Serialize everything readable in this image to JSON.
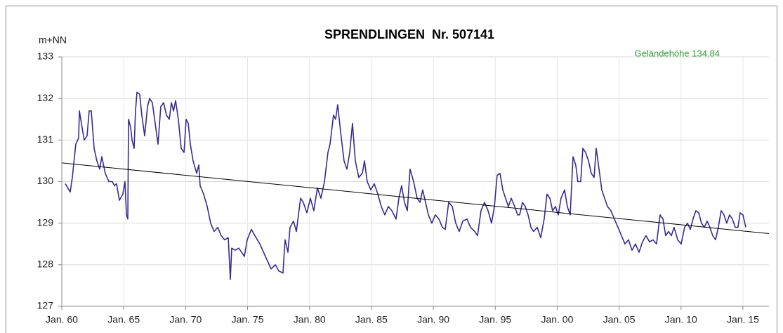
{
  "chart_data": {
    "type": "line",
    "title": "SPRENDLINGEN  Nr. 507141",
    "y_label": "m+NN",
    "annotation": "Geländehöhe 134,84",
    "annotation_color": "#339933",
    "x": [
      1960.28,
      1960.68,
      1960.85,
      1961.13,
      1961.36,
      1961.42,
      1961.64,
      1961.81,
      1962.04,
      1962.21,
      1962.38,
      1962.61,
      1962.83,
      1963.06,
      1963.23,
      1963.51,
      1963.8,
      1964.08,
      1964.25,
      1964.42,
      1964.65,
      1964.93,
      1965.1,
      1965.22,
      1965.33,
      1965.39,
      1965.56,
      1965.67,
      1965.84,
      1965.95,
      1966.07,
      1966.29,
      1966.46,
      1966.69,
      1966.92,
      1967.09,
      1967.31,
      1967.54,
      1967.77,
      1967.99,
      1968.22,
      1968.45,
      1968.68,
      1968.85,
      1969.02,
      1969.19,
      1969.41,
      1969.64,
      1969.87,
      1970.04,
      1970.21,
      1970.38,
      1970.6,
      1970.89,
      1971.06,
      1971.17,
      1971.45,
      1971.74,
      1972.02,
      1972.3,
      1972.59,
      1972.87,
      1973.15,
      1973.44,
      1973.61,
      1973.72,
      1974.0,
      1974.29,
      1974.52,
      1974.74,
      1974.97,
      1975.31,
      1975.59,
      1975.99,
      1976.44,
      1976.9,
      1977.24,
      1977.52,
      1977.86,
      1978.03,
      1978.26,
      1978.43,
      1978.71,
      1978.94,
      1979.28,
      1979.5,
      1979.79,
      1980.07,
      1980.35,
      1980.64,
      1980.92,
      1981.21,
      1981.49,
      1981.66,
      1981.94,
      1982.11,
      1982.28,
      1982.51,
      1982.79,
      1983.02,
      1983.25,
      1983.47,
      1983.7,
      1983.98,
      1984.27,
      1984.44,
      1984.66,
      1984.95,
      1985.23,
      1985.52,
      1985.8,
      1986.08,
      1986.37,
      1986.65,
      1986.99,
      1987.22,
      1987.44,
      1987.67,
      1987.9,
      1988.12,
      1988.41,
      1988.69,
      1988.92,
      1989.14,
      1989.37,
      1989.6,
      1989.88,
      1990.16,
      1990.45,
      1990.73,
      1990.96,
      1991.24,
      1991.53,
      1991.81,
      1992.09,
      1992.38,
      1992.72,
      1993.0,
      1993.34,
      1993.57,
      1993.85,
      1994.13,
      1994.42,
      1994.7,
      1994.93,
      1995.15,
      1995.38,
      1995.61,
      1995.83,
      1996.06,
      1996.29,
      1996.57,
      1996.8,
      1996.97,
      1997.2,
      1997.42,
      1997.65,
      1997.88,
      1998.1,
      1998.39,
      1998.67,
      1998.95,
      1999.18,
      1999.41,
      1999.63,
      1999.86,
      2000.09,
      2000.31,
      2000.6,
      2000.82,
      2001.05,
      2001.28,
      2001.5,
      2001.67,
      2001.9,
      2002.07,
      2002.3,
      2002.53,
      2002.75,
      2002.98,
      2003.15,
      2003.38,
      2003.6,
      2003.83,
      2004.06,
      2004.34,
      2004.62,
      2004.91,
      2005.19,
      2005.47,
      2005.76,
      2006.04,
      2006.32,
      2006.61,
      2006.89,
      2007.17,
      2007.46,
      2007.74,
      2008.02,
      2008.31,
      2008.54,
      2008.76,
      2008.99,
      2009.22,
      2009.44,
      2009.73,
      2010.01,
      2010.29,
      2010.52,
      2010.75,
      2010.97,
      2011.2,
      2011.43,
      2011.65,
      2011.88,
      2012.11,
      2012.33,
      2012.56,
      2012.79,
      2013.01,
      2013.24,
      2013.47,
      2013.69,
      2013.92,
      2014.15,
      2014.38,
      2014.6,
      2014.77,
      2015.0,
      2015.23
    ],
    "series": [
      {
        "color": "#3b2a8f",
        "values": [
          129.95,
          129.75,
          130.1,
          130.9,
          131.05,
          131.7,
          131.3,
          131.0,
          131.1,
          131.7,
          131.7,
          130.8,
          130.5,
          130.3,
          130.6,
          130.2,
          130.0,
          130.0,
          129.9,
          129.95,
          129.55,
          129.7,
          130.0,
          129.2,
          129.1,
          131.5,
          131.3,
          131.0,
          130.8,
          131.7,
          132.15,
          132.1,
          131.6,
          131.1,
          131.8,
          132.0,
          131.9,
          131.4,
          130.9,
          131.8,
          131.9,
          131.6,
          131.5,
          131.9,
          131.7,
          131.95,
          131.5,
          130.8,
          130.7,
          131.5,
          131.4,
          130.9,
          130.5,
          130.2,
          130.4,
          129.9,
          129.7,
          129.4,
          129.0,
          128.8,
          128.9,
          128.7,
          128.6,
          128.65,
          127.65,
          128.4,
          128.35,
          128.4,
          128.3,
          128.2,
          128.6,
          128.85,
          128.7,
          128.5,
          128.2,
          127.9,
          128.0,
          127.85,
          127.8,
          128.6,
          128.3,
          128.9,
          129.05,
          128.8,
          129.6,
          129.5,
          129.25,
          129.6,
          129.3,
          129.85,
          129.6,
          130.0,
          130.7,
          130.9,
          131.6,
          131.5,
          131.85,
          131.2,
          130.5,
          130.3,
          130.7,
          131.4,
          130.5,
          130.1,
          130.2,
          130.5,
          130.0,
          129.8,
          129.95,
          129.7,
          129.4,
          129.2,
          129.4,
          129.3,
          129.1,
          129.6,
          129.9,
          129.5,
          129.3,
          130.3,
          130.0,
          129.6,
          129.5,
          129.8,
          129.5,
          129.2,
          129.0,
          129.2,
          129.1,
          128.9,
          128.85,
          129.5,
          129.4,
          129.0,
          128.8,
          129.05,
          129.1,
          128.9,
          128.8,
          128.7,
          129.3,
          129.5,
          129.3,
          129.0,
          129.4,
          130.15,
          130.2,
          129.8,
          129.6,
          129.4,
          129.6,
          129.4,
          129.2,
          129.2,
          129.5,
          129.4,
          129.2,
          128.9,
          128.8,
          128.9,
          128.65,
          129.1,
          129.7,
          129.6,
          129.3,
          129.4,
          129.2,
          129.6,
          129.8,
          129.4,
          129.2,
          130.6,
          130.4,
          130.0,
          130.0,
          130.8,
          130.7,
          130.5,
          130.2,
          130.1,
          130.8,
          130.3,
          129.8,
          129.6,
          129.4,
          129.3,
          129.1,
          128.9,
          128.7,
          128.5,
          128.6,
          128.35,
          128.5,
          128.3,
          128.55,
          128.7,
          128.55,
          128.6,
          128.5,
          129.2,
          129.1,
          128.7,
          128.8,
          128.7,
          128.9,
          128.6,
          128.5,
          128.9,
          129.0,
          128.85,
          129.1,
          129.3,
          129.25,
          129.0,
          128.9,
          129.05,
          128.9,
          128.7,
          128.6,
          128.9,
          129.3,
          129.2,
          129.0,
          129.2,
          129.1,
          128.9,
          128.9,
          129.25,
          129.2,
          128.9
        ]
      }
    ],
    "trend": {
      "color": "#000000",
      "x": [
        1960,
        2017.1
      ],
      "values": [
        130.45,
        128.75
      ]
    },
    "xlim": [
      1960,
      2017.1
    ],
    "ylim": [
      127,
      133
    ],
    "yticks": [
      127,
      128,
      129,
      130,
      131,
      132,
      133
    ],
    "xticks": [
      {
        "value": 1960,
        "label": "Jan. 60"
      },
      {
        "value": 1965,
        "label": "Jan. 65"
      },
      {
        "value": 1970,
        "label": "Jan. 70"
      },
      {
        "value": 1975,
        "label": "Jan. 75"
      },
      {
        "value": 1980,
        "label": "Jan. 80"
      },
      {
        "value": 1985,
        "label": "Jan. 85"
      },
      {
        "value": 1990,
        "label": "Jan. 90"
      },
      {
        "value": 1995,
        "label": "Jan. 95"
      },
      {
        "value": 2000,
        "label": "Jan. 00"
      },
      {
        "value": 2005,
        "label": "Jan. 05"
      },
      {
        "value": 2010,
        "label": "Jan. 10"
      },
      {
        "value": 2015,
        "label": "Jan. 15"
      }
    ],
    "grid": true
  }
}
